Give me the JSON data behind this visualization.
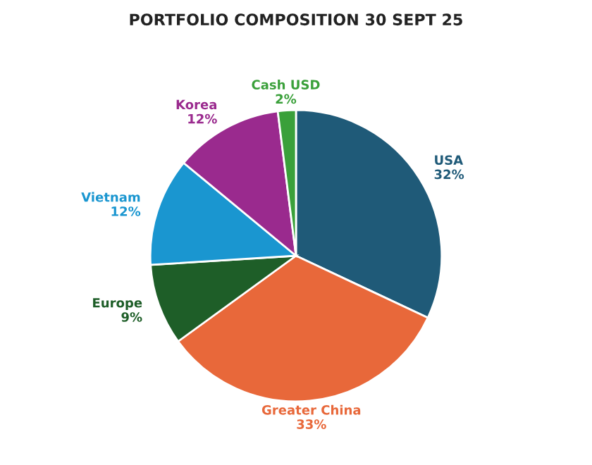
{
  "chart_data": {
    "type": "pie",
    "title": "PORTFOLIO COMPOSITION 30 SEPT 25",
    "categories": [
      "USA",
      "Greater China",
      "Europe",
      "Vietnam",
      "Korea",
      "Cash USD"
    ],
    "values": [
      32,
      33,
      9,
      12,
      12,
      2
    ],
    "value_labels": [
      "32%",
      "33%",
      "9%",
      "12%",
      "12%",
      "2%"
    ],
    "colors": [
      "#1f5a78",
      "#e8683a",
      "#1e5e28",
      "#1a96d0",
      "#9a2a8e",
      "#3aa03a"
    ],
    "legend": false
  }
}
